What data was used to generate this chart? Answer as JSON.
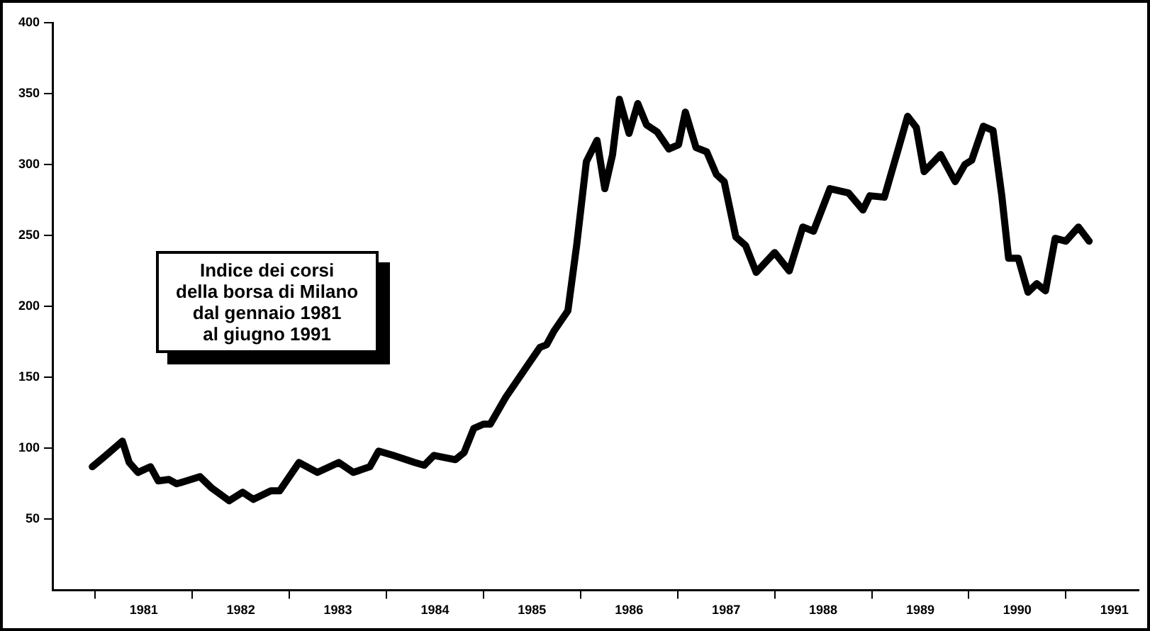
{
  "chart_data": {
    "type": "line",
    "annotations": [
      "Indice dei corsi\ndella borsa di Milano\ndal gennaio 1981\nal giugno 1991"
    ],
    "xlim": [
      1980.56,
      1991.75
    ],
    "ylim": [
      0,
      400
    ],
    "xticks": [
      {
        "value": 1981,
        "label": null
      },
      {
        "value": 1981.5,
        "label": "1981"
      },
      {
        "value": 1982,
        "label": null
      },
      {
        "value": 1982.5,
        "label": "1982"
      },
      {
        "value": 1983,
        "label": null
      },
      {
        "value": 1983.5,
        "label": "1983"
      },
      {
        "value": 1984,
        "label": null
      },
      {
        "value": 1984.5,
        "label": "1984"
      },
      {
        "value": 1985,
        "label": null
      },
      {
        "value": 1985.5,
        "label": "1985"
      },
      {
        "value": 1986,
        "label": null
      },
      {
        "value": 1986.5,
        "label": "1986"
      },
      {
        "value": 1987,
        "label": null
      },
      {
        "value": 1987.5,
        "label": "1987"
      },
      {
        "value": 1988,
        "label": null
      },
      {
        "value": 1988.5,
        "label": "1988"
      },
      {
        "value": 1989,
        "label": null
      },
      {
        "value": 1989.5,
        "label": "1989"
      },
      {
        "value": 1990,
        "label": null
      },
      {
        "value": 1990.5,
        "label": "1990"
      },
      {
        "value": 1991,
        "label": null
      },
      {
        "value": 1991.5,
        "label": "1991"
      }
    ],
    "yticks": [
      50,
      100,
      150,
      200,
      250,
      300,
      350,
      400
    ],
    "grid": false,
    "legend": false,
    "marker": "none",
    "line_style": "solid",
    "series": [
      {
        "color": "#000000",
        "x": [
          1980.97,
          1981.11,
          1981.28,
          1981.35,
          1981.44,
          1981.57,
          1981.65,
          1981.76,
          1981.84,
          1981.94,
          1982.08,
          1982.2,
          1982.38,
          1982.52,
          1982.63,
          1982.81,
          1982.9,
          1983.1,
          1983.29,
          1983.51,
          1983.66,
          1983.83,
          1983.92,
          1984.07,
          1984.29,
          1984.39,
          1984.49,
          1984.71,
          1984.8,
          1984.9,
          1985.0,
          1985.07,
          1985.23,
          1985.48,
          1985.58,
          1985.65,
          1985.73,
          1985.87,
          1985.96,
          1986.06,
          1986.17,
          1986.25,
          1986.33,
          1986.4,
          1986.5,
          1986.59,
          1986.68,
          1986.79,
          1986.91,
          1987.01,
          1987.08,
          1987.19,
          1987.3,
          1987.4,
          1987.48,
          1987.6,
          1987.7,
          1987.81,
          1988.0,
          1988.15,
          1988.29,
          1988.4,
          1988.57,
          1988.76,
          1988.91,
          1988.98,
          1989.13,
          1989.24,
          1989.37,
          1989.46,
          1989.54,
          1989.71,
          1989.86,
          1989.96,
          1990.03,
          1990.15,
          1990.25,
          1990.34,
          1990.41,
          1990.51,
          1990.61,
          1990.7,
          1990.79,
          1990.89,
          1991.0,
          1991.13,
          1991.24
        ],
        "values": [
          87,
          95,
          105,
          90,
          83,
          87,
          77,
          78,
          75,
          77,
          80,
          72,
          63,
          69,
          64,
          70,
          70,
          90,
          83,
          90,
          83,
          87,
          98,
          95,
          90,
          88,
          95,
          92,
          97,
          114,
          117,
          117,
          136,
          161,
          171,
          173,
          183,
          197,
          243,
          302,
          317,
          283,
          307,
          346,
          322,
          343,
          328,
          323,
          311,
          314,
          337,
          312,
          309,
          293,
          288,
          249,
          243,
          224,
          238,
          225,
          256,
          253,
          283,
          280,
          268,
          278,
          277,
          303,
          334,
          326,
          295,
          307,
          288,
          300,
          303,
          327,
          324,
          278,
          234,
          234,
          210,
          216,
          211,
          248,
          246,
          256,
          246
        ]
      }
    ]
  }
}
